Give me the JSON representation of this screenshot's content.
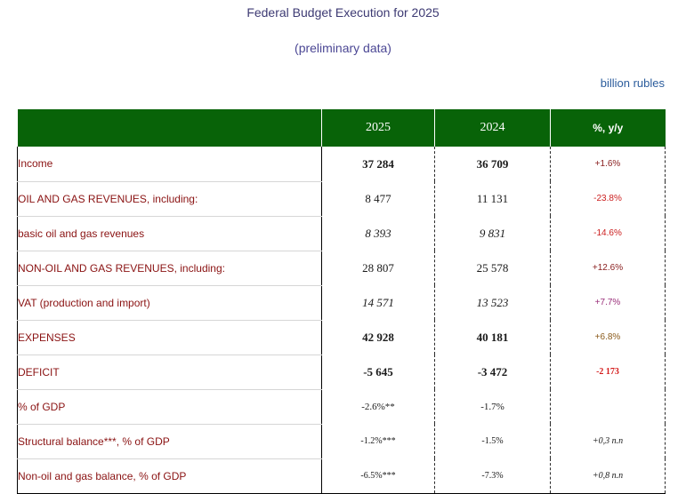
{
  "header": {
    "title": "Federal Budget Execution for 2025",
    "subtitle": "(preliminary data)",
    "units": "billion rubles"
  },
  "table": {
    "columns": [
      "",
      "2025",
      "2024",
      "%, y/y"
    ],
    "rows": [
      {
        "label": "Income",
        "v2025": "37 284",
        "v2024": "36 709",
        "change": "+1.6%"
      },
      {
        "label": "OIL AND GAS REVENUES, including:",
        "v2025": "8 477",
        "v2024": "11 131",
        "change": "-23.8%"
      },
      {
        "label": "basic oil and gas revenues",
        "v2025": "8 393",
        "v2024": "9 831",
        "change": "-14.6%"
      },
      {
        "label": "NON-OIL AND GAS REVENUES, including:",
        "v2025": "28 807",
        "v2024": "25 578",
        "change": "+12.6%"
      },
      {
        "label": "VAT (production and import)",
        "v2025": "14 571",
        "v2024": "13 523",
        "change": "+7.7%"
      },
      {
        "label": "EXPENSES",
        "v2025": "42 928",
        "v2024": "40 181",
        "change": "+6.8%"
      },
      {
        "label": "DEFICIT",
        "v2025": "-5 645",
        "v2024": "-3 472",
        "change": "-2 173"
      },
      {
        "label": "% of GDP",
        "v2025": "-2.6%**",
        "v2024": "-1.7%",
        "change": ""
      },
      {
        "label": "Structural balance***, % of GDP",
        "v2025": "-1.2%***",
        "v2024": "-1.5%",
        "change": "+0,3 п.п"
      },
      {
        "label": "Non-oil and gas balance, % of GDP",
        "v2025": "-6.5%***",
        "v2024": "-7.3%",
        "change": "+0,8 п.п"
      }
    ]
  }
}
